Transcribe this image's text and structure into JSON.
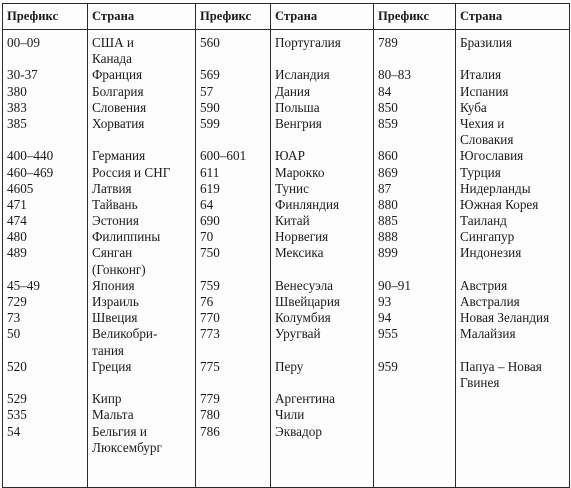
{
  "headers": [
    "Префикс",
    "Страна",
    "Префикс",
    "Страна",
    "Префикс",
    "Страна"
  ],
  "columns": [
    {
      "prefixes": [
        "00–09",
        "",
        "30-37",
        "380",
        "383",
        "385",
        "",
        "400–440",
        "460–469",
        "4605",
        "471",
        "474",
        "480",
        "489",
        "",
        "45–49",
        "729",
        "73",
        "50",
        "",
        "520",
        "",
        "529",
        "535",
        "54",
        ""
      ],
      "countries": [
        "США и",
        "Канада",
        "Франция",
        "Болгария",
        "Словения",
        "Хорватия",
        "",
        "Германия",
        "Россия и СНГ",
        "Латвия",
        "Тайвань",
        "Эстония",
        "Филиппины",
        "Сянган",
        "(Гонконг)",
        "Япония",
        "Израиль",
        "Швеция",
        "Великобри-",
        "тания",
        "Греция",
        "",
        "Кипр",
        "Мальта",
        "Бельгия и",
        "Люксембург"
      ]
    },
    {
      "prefixes": [
        "560",
        "",
        "569",
        "57",
        "590",
        "599",
        "",
        "600–601",
        "611",
        "619",
        "64",
        "690",
        "70",
        "750",
        "",
        "759",
        "76",
        "770",
        "773",
        "",
        "775",
        "",
        "779",
        "780",
        "786",
        ""
      ],
      "countries": [
        "Португалия",
        "",
        "Исландия",
        "Дания",
        "Польша",
        "Венгрия",
        "",
        "ЮАР",
        "Марокко",
        "Тунис",
        "Финляндия",
        "Китай",
        "Норвегия",
        "Мексика",
        "",
        "Венесуэла",
        "Швейцария",
        "Колумбия",
        "Уругвай",
        "",
        "Перу",
        "",
        "Аргентина",
        "Чили",
        "Эквадор",
        ""
      ]
    },
    {
      "prefixes": [
        "789",
        "",
        "80–83",
        "84",
        "850",
        "859",
        "",
        "860",
        "869",
        "87",
        "880",
        "885",
        "888",
        "899",
        "",
        "90–91",
        "93",
        "94",
        "955",
        "",
        "959",
        "",
        "",
        "",
        "",
        ""
      ],
      "countries": [
        "Бразилия",
        "",
        "Италия",
        "Испания",
        "Куба",
        "Чехия и",
        "Словакия",
        "Югославия",
        "Турция",
        "Нидерланды",
        "Южная Корея",
        "Таиланд",
        "Сингапур",
        "Индонезия",
        "",
        "Австрия",
        "Австралия",
        "Новая Зеландия",
        "Малайзия",
        "",
        "Папуа – Новая",
        "Гвинея",
        "",
        "",
        "",
        ""
      ]
    }
  ]
}
